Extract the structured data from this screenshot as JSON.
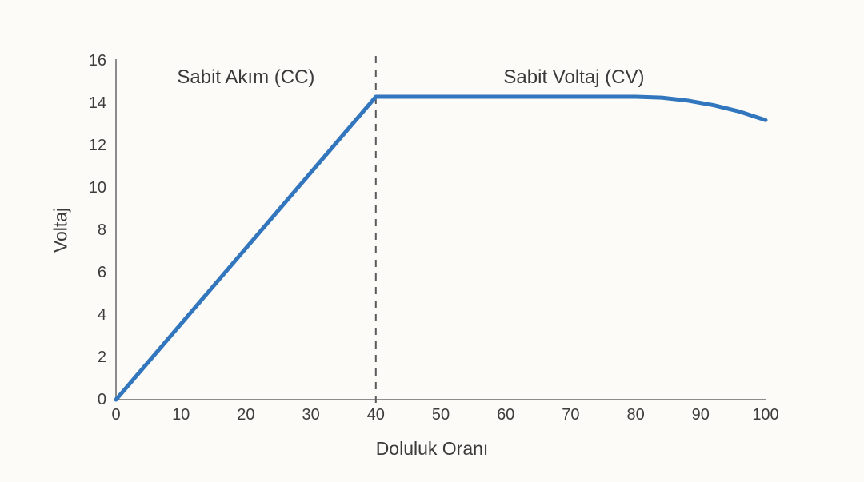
{
  "chart_data": {
    "type": "line",
    "title": "",
    "xlabel": "Doluluk Oranı",
    "ylabel": "Voltaj",
    "xlim": [
      0,
      100
    ],
    "ylim": [
      0,
      16
    ],
    "xticks": [
      0,
      10,
      20,
      30,
      40,
      50,
      60,
      70,
      80,
      90,
      100
    ],
    "yticks": [
      0,
      2,
      4,
      6,
      8,
      10,
      12,
      14,
      16
    ],
    "grid": false,
    "legend": "none",
    "series": [
      {
        "name": "Voltaj",
        "color": "#3276bd",
        "points": [
          [
            0,
            0
          ],
          [
            40,
            14.3
          ],
          [
            80,
            14.3
          ],
          [
            84,
            14.26
          ],
          [
            88,
            14.12
          ],
          [
            92,
            13.9
          ],
          [
            96,
            13.6
          ],
          [
            100,
            13.2
          ]
        ]
      }
    ],
    "phase_boundary_vline": {
      "x": 40,
      "style": "dashed",
      "color": "#5a5a5a"
    },
    "annotations": [
      {
        "text": "Sabit Akım (CC)",
        "x": 20,
        "y": 15.2
      },
      {
        "text": "Sabit Voltaj (CV)",
        "x": 70.5,
        "y": 15.2
      }
    ],
    "colors": {
      "background": "#fcfbf8",
      "axis": "#8c8c8c",
      "text": "#3a3a3a",
      "line": "#3276bd"
    }
  }
}
